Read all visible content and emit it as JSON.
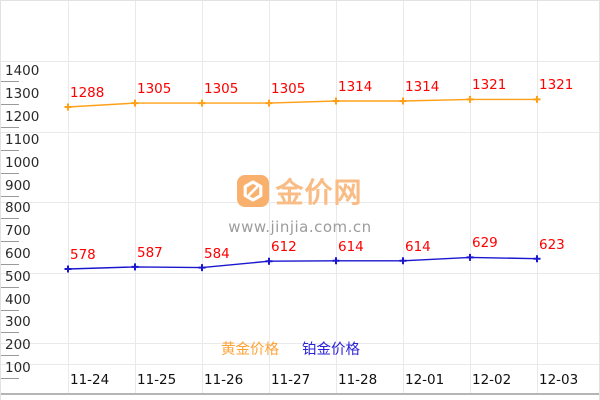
{
  "watermark": {
    "logo_icon": "yen-hexagon-icon",
    "brand": "金价网",
    "url": "www.jinjia.com.cn",
    "logo_color": "#F8B06C"
  },
  "chart_data": {
    "type": "line",
    "categories": [
      "11-24",
      "11-25",
      "11-26",
      "11-27",
      "11-28",
      "12-01",
      "12-02",
      "12-03"
    ],
    "series": [
      {
        "name": "黄金价格",
        "color": "#FFA018",
        "values": [
          1288,
          1305,
          1305,
          1305,
          1314,
          1314,
          1321,
          1321
        ]
      },
      {
        "name": "铂金价格",
        "color": "#1A17CF",
        "values": [
          578,
          587,
          584,
          612,
          614,
          614,
          629,
          623
        ]
      }
    ],
    "y_ticks": [
      1400,
      1300,
      1200,
      1100,
      1000,
      900,
      800,
      700,
      600,
      500,
      400,
      300,
      200,
      100
    ],
    "ylim": [
      100,
      1400
    ],
    "title": "",
    "xlabel": "",
    "ylabel": "",
    "value_label_color": "#FD0100",
    "grid": true,
    "legend_position": "bottom-center",
    "colors": {
      "grid": "#E9E9E9",
      "axis": "#B5B5B5",
      "tick": "#9A9A9A",
      "axis_label": "#2B2B2B"
    }
  }
}
